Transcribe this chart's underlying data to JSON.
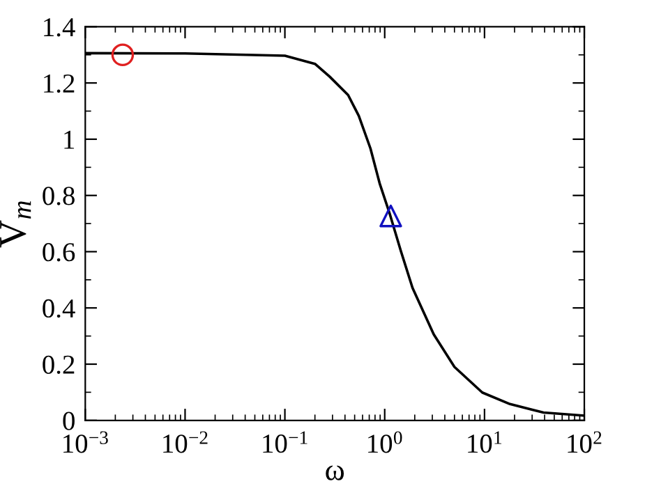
{
  "chart_data": {
    "type": "line",
    "xlabel": "ω",
    "ylabel": "V$_{m}$",
    "log": "x",
    "grid": false,
    "xlim": [
      0.001,
      100
    ],
    "ylim": [
      0,
      1.4
    ],
    "xticks": [
      {
        "value": 0.001,
        "label": "10$^{−3}$"
      },
      {
        "value": 0.01,
        "label": "10$^{−2}$"
      },
      {
        "value": 0.1,
        "label": "10$^{−1}$"
      },
      {
        "value": 1,
        "label": "10$^{0}$"
      },
      {
        "value": 10,
        "label": "10$^{1}$"
      },
      {
        "value": 100,
        "label": "10$^{2}$"
      }
    ],
    "yticks": [
      0,
      0.2,
      0.4,
      0.6,
      0.8,
      1,
      1.2,
      1.4
    ],
    "series": [
      {
        "color": "#000000",
        "marker": "none",
        "line_style": "solid",
        "x": [
          0.001,
          0.01,
          0.1,
          0.2,
          0.28,
          0.43,
          0.55,
          0.72,
          0.89,
          1.12,
          1.45,
          1.9,
          3.1,
          5.0,
          9.5,
          18,
          39,
          100
        ],
        "values": [
          1.306,
          1.305,
          1.297,
          1.268,
          1.223,
          1.157,
          1.083,
          0.967,
          0.843,
          0.736,
          0.603,
          0.471,
          0.306,
          0.19,
          0.099,
          0.058,
          0.028,
          0.017
        ]
      },
      {
        "type": "scatter",
        "color": "#e02020",
        "marker": "circle",
        "x": [
          0.00237
        ],
        "values": [
          1.3
        ]
      },
      {
        "type": "scatter",
        "color": "#1010c0",
        "marker": "triangle",
        "x": [
          1.15
        ],
        "values": [
          0.727
        ]
      }
    ]
  }
}
